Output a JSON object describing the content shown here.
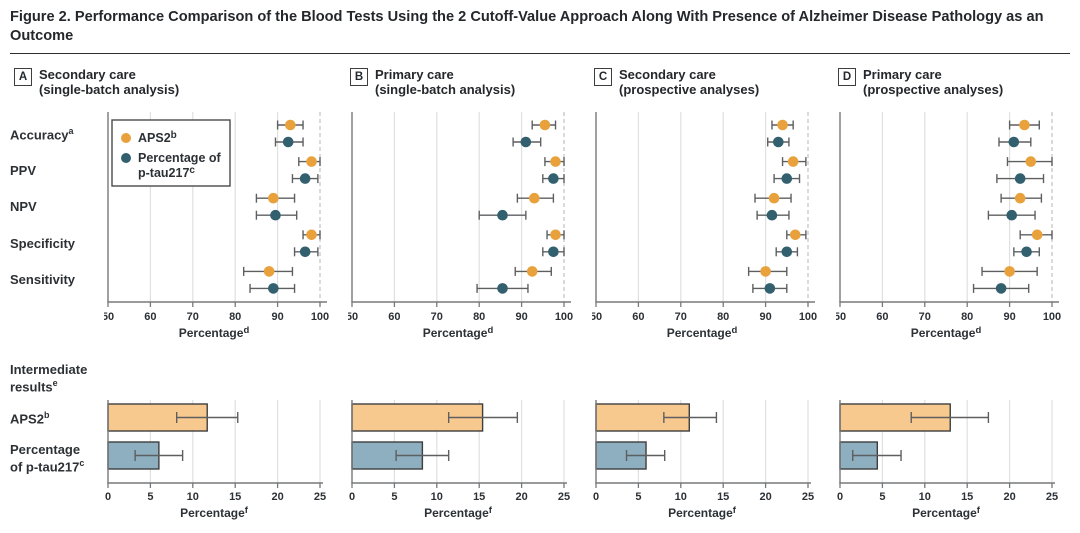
{
  "title": "Figure 2. Performance Comparison of the Blood Tests Using the 2 Cutoff-Value Approach Along With Presence of Alzheimer Disease Pathology as an Outcome",
  "colors": {
    "aps2_dot": "#E9A23B",
    "ptau_dot": "#33606F",
    "aps2_bar_fill": "#F8C98E",
    "ptau_bar_fill": "#8DAFBF",
    "bar_border": "#3e3e3e",
    "error_bar": "#5e5f61",
    "axis": "#77787a",
    "grid": "#e0e0e0",
    "dashed_line": "#c6c6c6",
    "text": "#2c3136",
    "legend_border": "#4a4a4a"
  },
  "legend": {
    "items": [
      {
        "label": "APS2",
        "sup": "b",
        "lines": [
          "APS2"
        ]
      },
      {
        "label": "Percentage of p-tau217",
        "sup": "c",
        "lines": [
          "Percentage of",
          "p-tau217"
        ]
      }
    ]
  },
  "metrics": [
    {
      "label": "Accuracy",
      "sup": "a"
    },
    {
      "label": "PPV"
    },
    {
      "label": "NPV"
    },
    {
      "label": "Specificity"
    },
    {
      "label": "Sensitivity"
    }
  ],
  "top_panels": [
    {
      "letter": "A",
      "title_line1": "Secondary care",
      "title_line2": "(single-batch analysis)"
    },
    {
      "letter": "B",
      "title_line1": "Primary care",
      "title_line2": "(single-batch analysis)"
    },
    {
      "letter": "C",
      "title_line1": "Secondary care",
      "title_line2": "(prospective analyses)"
    },
    {
      "letter": "D",
      "title_line1": "Primary care",
      "title_line2": "(prospective analyses)"
    }
  ],
  "bottom_gutter": {
    "header_line1": "Intermediate",
    "header_line2": "results",
    "header_sup": "e",
    "bar1_label": "APS2",
    "bar1_sup": "b",
    "bar2_line1": "Percentage",
    "bar2_line2": "of p-tau217",
    "bar2_sup": "c"
  },
  "chart_data": [
    {
      "type": "scatter",
      "panel": "A",
      "title": "Secondary care (single-batch analysis)",
      "categories": [
        "Accuracy",
        "PPV",
        "NPV",
        "Specificity",
        "Sensitivity"
      ],
      "xlabel": "Percentage",
      "xlabel_sup": "d",
      "xlim": [
        50,
        100
      ],
      "xticks": [
        50,
        60,
        70,
        80,
        90,
        100
      ],
      "dashed_at": 100,
      "legend_position": "upper-left",
      "series": [
        {
          "name": "APS2",
          "values": [
            93,
            98,
            89,
            98,
            88
          ],
          "ci_low": [
            90,
            95,
            85,
            96,
            82
          ],
          "ci_high": [
            96,
            100,
            94,
            100,
            93.5
          ]
        },
        {
          "name": "Percentage of p-tau217",
          "values": [
            92.5,
            96.5,
            89.5,
            96.5,
            89
          ],
          "ci_low": [
            89.5,
            93.5,
            85,
            94,
            83.5
          ],
          "ci_high": [
            96,
            99.5,
            94.5,
            99.5,
            94
          ]
        }
      ]
    },
    {
      "type": "scatter",
      "panel": "B",
      "title": "Primary care (single-batch analysis)",
      "categories": [
        "Accuracy",
        "PPV",
        "NPV",
        "Specificity",
        "Sensitivity"
      ],
      "xlabel": "Percentage",
      "xlabel_sup": "d",
      "xlim": [
        50,
        100
      ],
      "xticks": [
        50,
        60,
        70,
        80,
        90,
        100
      ],
      "dashed_at": 100,
      "series": [
        {
          "name": "APS2",
          "values": [
            95.5,
            98,
            93,
            98,
            92.5
          ],
          "ci_low": [
            92.5,
            95.5,
            89,
            96,
            88.5
          ],
          "ci_high": [
            98,
            100,
            97.5,
            100,
            97
          ]
        },
        {
          "name": "Percentage of p-tau217",
          "values": [
            91,
            97.5,
            85.5,
            97.5,
            85.5
          ],
          "ci_low": [
            88,
            95,
            80,
            95,
            79.5
          ],
          "ci_high": [
            94.5,
            100,
            91,
            100,
            91.5
          ]
        }
      ]
    },
    {
      "type": "scatter",
      "panel": "C",
      "title": "Secondary care (prospective analyses)",
      "categories": [
        "Accuracy",
        "PPV",
        "NPV",
        "Specificity",
        "Sensitivity"
      ],
      "xlabel": "Percentage",
      "xlabel_sup": "d",
      "xlim": [
        50,
        100
      ],
      "xticks": [
        50,
        60,
        70,
        80,
        90,
        100
      ],
      "dashed_at": 100,
      "series": [
        {
          "name": "APS2",
          "values": [
            94,
            96.5,
            92,
            97,
            90
          ],
          "ci_low": [
            91.5,
            94,
            87.5,
            95,
            86
          ],
          "ci_high": [
            96.5,
            99.5,
            96,
            99.5,
            95
          ]
        },
        {
          "name": "Percentage of p-tau217",
          "values": [
            93,
            95,
            91.5,
            95,
            91
          ],
          "ci_low": [
            90.5,
            92,
            88,
            92.5,
            87
          ],
          "ci_high": [
            95.5,
            98,
            95.5,
            97.5,
            95
          ]
        }
      ]
    },
    {
      "type": "scatter",
      "panel": "D",
      "title": "Primary care (prospective analyses)",
      "categories": [
        "Accuracy",
        "PPV",
        "NPV",
        "Specificity",
        "Sensitivity"
      ],
      "xlabel": "Percentage",
      "xlabel_sup": "d",
      "xlim": [
        50,
        100
      ],
      "xticks": [
        50,
        60,
        70,
        80,
        90,
        100
      ],
      "dashed_at": 100,
      "series": [
        {
          "name": "APS2",
          "values": [
            93.5,
            95,
            92.5,
            96.5,
            90
          ],
          "ci_low": [
            90,
            89.5,
            88,
            92.5,
            83.5
          ],
          "ci_high": [
            97,
            100,
            97.5,
            100,
            96.5
          ]
        },
        {
          "name": "Percentage of p-tau217",
          "values": [
            91,
            92.5,
            90.5,
            94,
            88
          ],
          "ci_low": [
            87.5,
            87,
            85,
            91,
            81.5
          ],
          "ci_high": [
            95,
            98,
            96,
            97,
            94.5
          ]
        }
      ]
    },
    {
      "type": "bar",
      "panel": "A",
      "title": "Intermediate results — Secondary care (single-batch analysis)",
      "categories": [
        "APS2",
        "Percentage of p-tau217"
      ],
      "values": [
        11.7,
        6.0
      ],
      "ci_low": [
        8.1,
        3.2
      ],
      "ci_high": [
        15.3,
        8.8
      ],
      "xlabel": "Percentage",
      "xlabel_sup": "f",
      "xlim": [
        0,
        25
      ],
      "xticks": [
        0,
        5,
        10,
        15,
        20,
        25
      ]
    },
    {
      "type": "bar",
      "panel": "B",
      "title": "Intermediate results — Primary care (single-batch analysis)",
      "categories": [
        "APS2",
        "Percentage of p-tau217"
      ],
      "values": [
        15.4,
        8.3
      ],
      "ci_low": [
        11.4,
        5.2
      ],
      "ci_high": [
        19.5,
        11.4
      ],
      "xlabel": "Percentage",
      "xlabel_sup": "f",
      "xlim": [
        0,
        25
      ],
      "xticks": [
        0,
        5,
        10,
        15,
        20,
        25
      ]
    },
    {
      "type": "bar",
      "panel": "C",
      "title": "Intermediate results — Secondary care (prospective analyses)",
      "categories": [
        "APS2",
        "Percentage of p-tau217"
      ],
      "values": [
        11.0,
        5.9
      ],
      "ci_low": [
        8.0,
        3.6
      ],
      "ci_high": [
        14.2,
        8.1
      ],
      "xlabel": "Percentage",
      "xlabel_sup": "f",
      "xlim": [
        0,
        25
      ],
      "xticks": [
        0,
        5,
        10,
        15,
        20,
        25
      ]
    },
    {
      "type": "bar",
      "panel": "D",
      "title": "Intermediate results — Primary care (prospective analyses)",
      "categories": [
        "APS2",
        "Percentage of p-tau217"
      ],
      "values": [
        13.0,
        4.4
      ],
      "ci_low": [
        8.4,
        1.5
      ],
      "ci_high": [
        17.5,
        7.2
      ],
      "xlabel": "Percentage",
      "xlabel_sup": "f",
      "xlim": [
        0,
        25
      ],
      "xticks": [
        0,
        5,
        10,
        15,
        20,
        25
      ]
    }
  ]
}
